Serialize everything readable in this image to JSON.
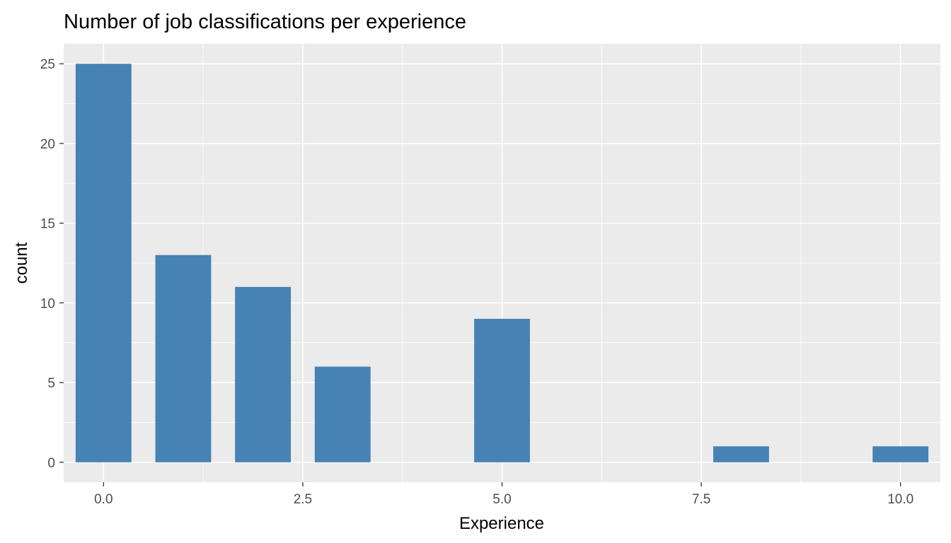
{
  "chart_data": {
    "type": "bar",
    "title": "Number of job classifications per experience",
    "xlabel": "Experience",
    "ylabel": "count",
    "x": [
      0,
      1,
      2,
      3,
      5,
      8,
      10
    ],
    "values": [
      25,
      13,
      11,
      6,
      9,
      1,
      1
    ],
    "xlim": [
      -0.5,
      10.5
    ],
    "ylim": [
      -1.25,
      26.25
    ],
    "x_ticks": [
      0,
      2.5,
      5,
      7.5,
      10
    ],
    "x_tick_labels": [
      "0.0",
      "2.5",
      "5.0",
      "7.5",
      "10.0"
    ],
    "y_ticks": [
      0,
      5,
      10,
      15,
      20,
      25
    ],
    "y_tick_labels": [
      "0",
      "5",
      "10",
      "15",
      "20",
      "25"
    ],
    "grid": true,
    "bar_color": "#4682B4",
    "panel_background": "#EBEBEB",
    "grid_color": "#FFFFFF"
  }
}
